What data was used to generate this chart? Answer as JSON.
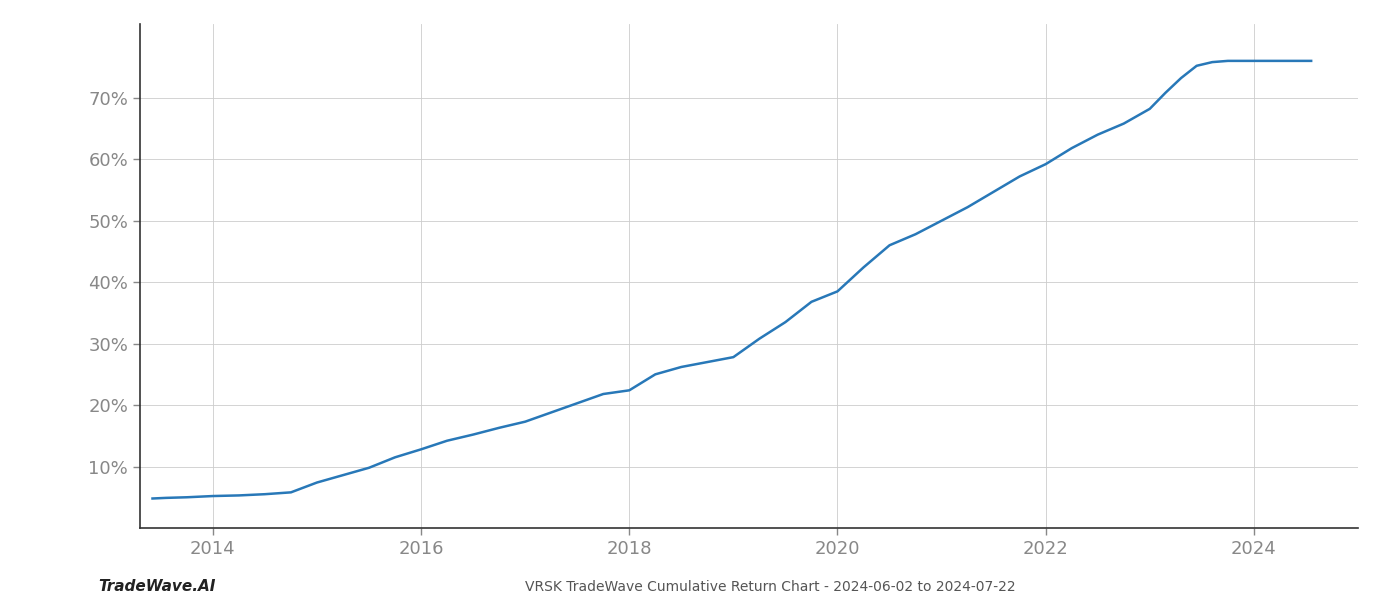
{
  "title": "VRSK TradeWave Cumulative Return Chart - 2024-06-02 to 2024-07-22",
  "watermark": "TradeWave.AI",
  "line_color": "#2878b8",
  "line_width": 1.8,
  "background_color": "#ffffff",
  "grid_color": "#cccccc",
  "xlim": [
    2013.3,
    2025.0
  ],
  "ylim": [
    0.0,
    0.82
  ],
  "xticks": [
    2014,
    2016,
    2018,
    2020,
    2022,
    2024
  ],
  "yticks": [
    0.1,
    0.2,
    0.3,
    0.4,
    0.5,
    0.6,
    0.7
  ],
  "x": [
    2013.42,
    2013.55,
    2013.75,
    2014.0,
    2014.25,
    2014.5,
    2014.75,
    2015.0,
    2015.25,
    2015.5,
    2015.75,
    2016.0,
    2016.25,
    2016.5,
    2016.75,
    2017.0,
    2017.25,
    2017.5,
    2017.75,
    2018.0,
    2018.25,
    2018.5,
    2018.75,
    2019.0,
    2019.25,
    2019.5,
    2019.75,
    2020.0,
    2020.25,
    2020.5,
    2020.75,
    2021.0,
    2021.25,
    2021.5,
    2021.75,
    2022.0,
    2022.25,
    2022.5,
    2022.75,
    2023.0,
    2023.15,
    2023.3,
    2023.45,
    2023.6,
    2023.75,
    2024.0,
    2024.25,
    2024.55
  ],
  "y": [
    0.048,
    0.049,
    0.05,
    0.052,
    0.053,
    0.055,
    0.058,
    0.074,
    0.086,
    0.098,
    0.115,
    0.128,
    0.142,
    0.152,
    0.163,
    0.173,
    0.188,
    0.203,
    0.218,
    0.224,
    0.25,
    0.262,
    0.27,
    0.278,
    0.308,
    0.335,
    0.368,
    0.385,
    0.424,
    0.46,
    0.478,
    0.5,
    0.522,
    0.547,
    0.572,
    0.592,
    0.618,
    0.64,
    0.658,
    0.682,
    0.708,
    0.732,
    0.752,
    0.758,
    0.76,
    0.76,
    0.76,
    0.76
  ]
}
